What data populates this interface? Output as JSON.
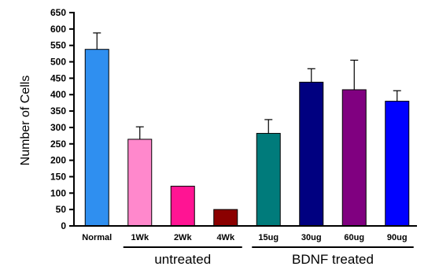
{
  "chart_data": {
    "type": "bar",
    "title": "",
    "xlabel": "",
    "ylabel": "Number of Cells",
    "ylim": [
      0,
      650
    ],
    "yticks": [
      0,
      50,
      100,
      150,
      200,
      250,
      300,
      350,
      400,
      450,
      500,
      550,
      600,
      650
    ],
    "grid": false,
    "categories": [
      "Normal",
      "1Wk",
      "2Wk",
      "4Wk",
      "15ug",
      "30ug",
      "60ug",
      "90ug"
    ],
    "values": [
      538,
      264,
      121,
      50,
      282,
      438,
      415,
      380
    ],
    "error_upper": [
      588,
      302,
      null,
      null,
      324,
      479,
      505,
      412
    ],
    "colors": [
      "#2f8ff0",
      "#ff88cc",
      "#ff1493",
      "#8b0000",
      "#007b7b",
      "#000080",
      "#800080",
      "#0000ff"
    ],
    "groups": [
      {
        "label": "untreated",
        "categories": [
          "1Wk",
          "2Wk",
          "4Wk"
        ]
      },
      {
        "label": "BDNF treated",
        "categories": [
          "15ug",
          "30ug",
          "60ug",
          "90ug"
        ]
      }
    ]
  }
}
